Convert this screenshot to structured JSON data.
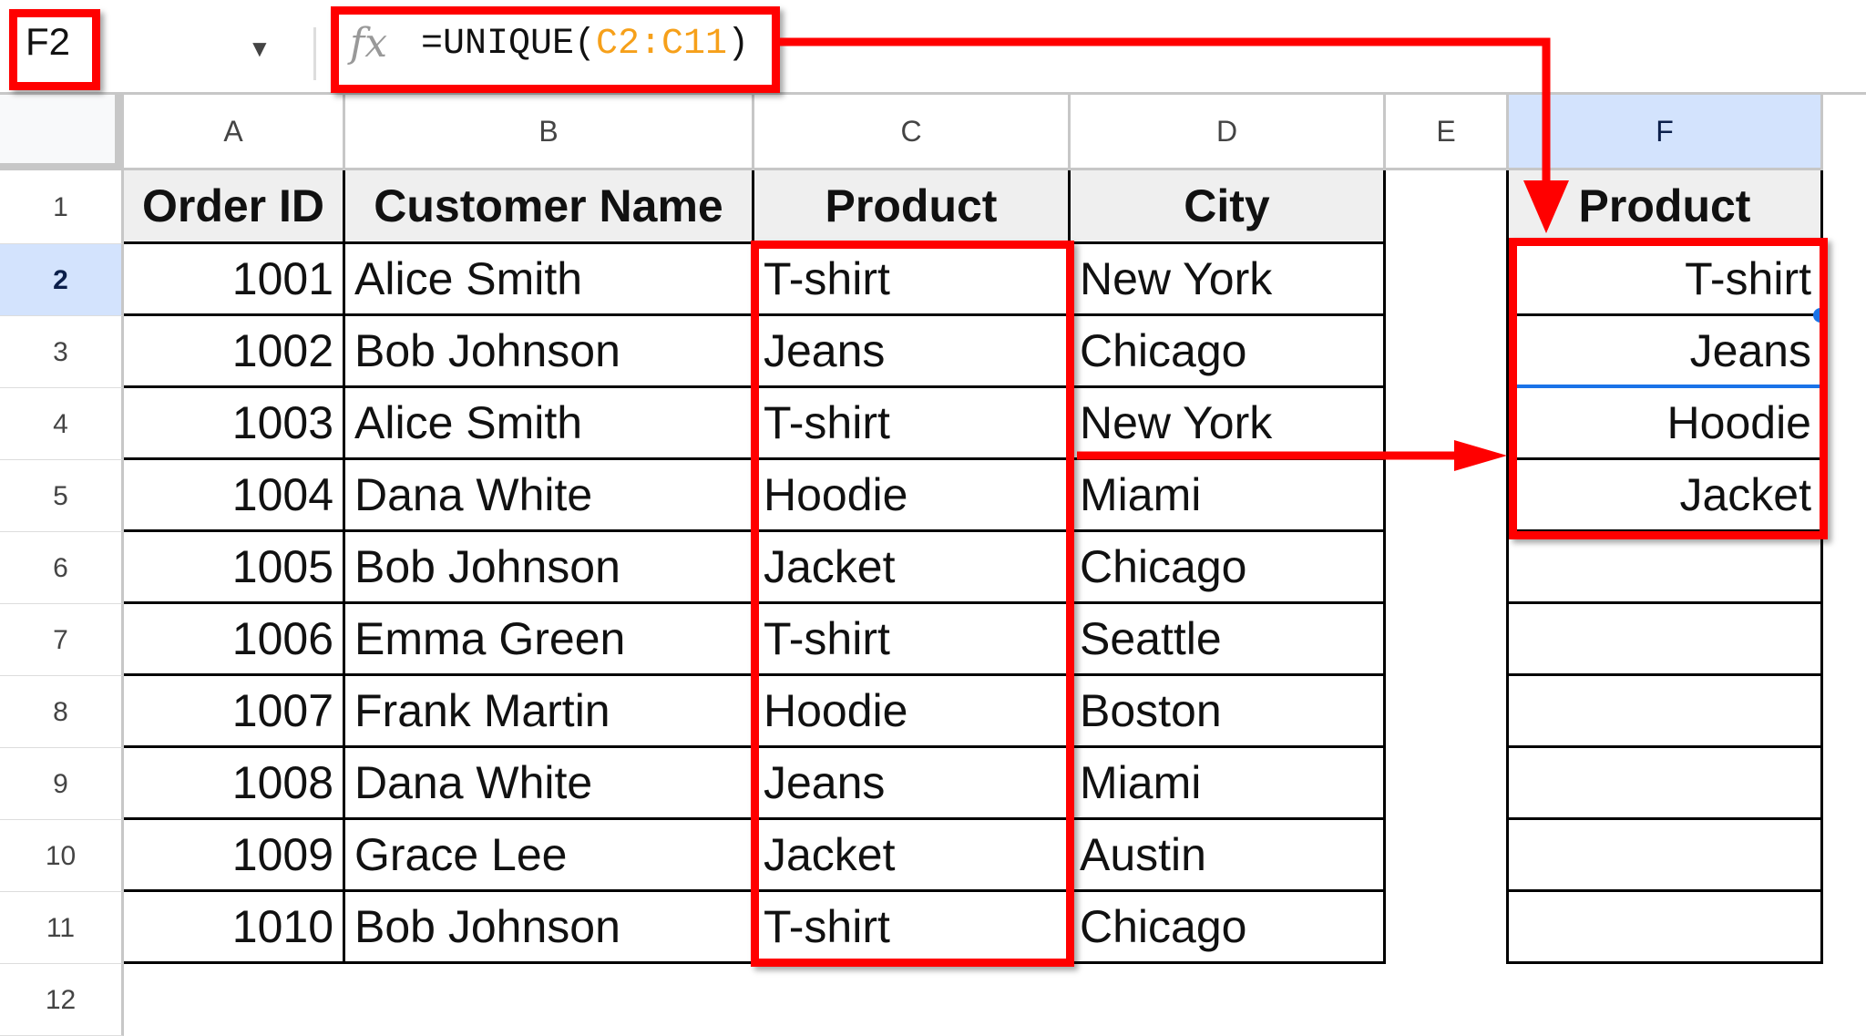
{
  "toolbar": {
    "name_box": "F2",
    "formula_prefix": "=UNIQUE(",
    "formula_ref": "C2:C11",
    "formula_suffix": ")",
    "fx_icon": "function-icon",
    "dropdown_icon": "caret-down-icon"
  },
  "columns": [
    "A",
    "B",
    "C",
    "D",
    "E",
    "F"
  ],
  "selected_column": "F",
  "selected_row": 2,
  "headers": [
    "Order ID",
    "Customer Name",
    "Product",
    "City",
    "",
    "Product"
  ],
  "rows": [
    [
      "1001",
      "Alice Smith",
      "T-shirt",
      "New York",
      "",
      "T-shirt"
    ],
    [
      "1002",
      "Bob Johnson",
      "Jeans",
      "Chicago",
      "",
      "Jeans"
    ],
    [
      "1003",
      "Alice Smith",
      "T-shirt",
      "New York",
      "",
      "Hoodie"
    ],
    [
      "1004",
      "Dana White",
      "Hoodie",
      "Miami",
      "",
      "Jacket"
    ],
    [
      "1005",
      "Bob Johnson",
      "Jacket",
      "Chicago",
      "",
      ""
    ],
    [
      "1006",
      "Emma Green",
      "T-shirt",
      "Seattle",
      "",
      ""
    ],
    [
      "1007",
      "Frank Martin",
      "Hoodie",
      "Boston",
      "",
      ""
    ],
    [
      "1008",
      "Dana White",
      "Jeans",
      "Miami",
      "",
      ""
    ],
    [
      "1009",
      "Grace Lee",
      "Jacket",
      "Austin",
      "",
      ""
    ],
    [
      "1010",
      "Bob Johnson",
      "T-shirt",
      "Chicago",
      "",
      ""
    ]
  ],
  "row_numbers": [
    "1",
    "2",
    "3",
    "4",
    "5",
    "6",
    "7",
    "8",
    "9",
    "10",
    "11",
    "12"
  ],
  "colors": {
    "highlight": "#ff0000",
    "selection": "#1a73e8",
    "header_selected": "#d3e3fd",
    "range_ref": "#f6a01a"
  }
}
